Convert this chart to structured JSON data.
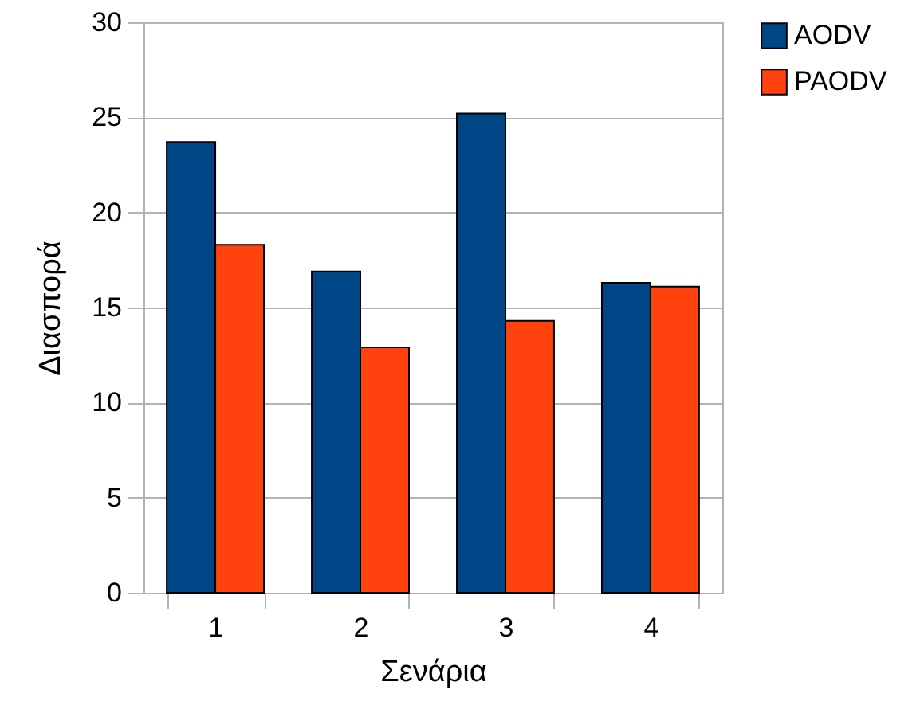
{
  "chart_data": {
    "type": "bar",
    "xlabel": "Σενάρια",
    "ylabel": "Διασπορά",
    "categories": [
      "1",
      "2",
      "3",
      "4"
    ],
    "series": [
      {
        "name": "AODV",
        "color": "#004586",
        "values": [
          23.7,
          16.9,
          25.2,
          16.3
        ]
      },
      {
        "name": "PAODV",
        "color": "#ff420e",
        "values": [
          18.3,
          12.9,
          14.3,
          16.1
        ]
      }
    ],
    "ylim": [
      0,
      30
    ],
    "yticks": [
      0,
      5,
      10,
      15,
      20,
      25,
      30
    ],
    "grid": "y",
    "legend": "right"
  }
}
